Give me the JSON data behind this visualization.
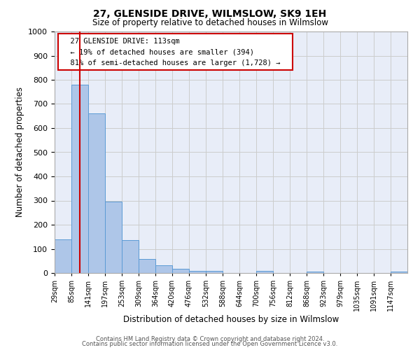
{
  "title": "27, GLENSIDE DRIVE, WILMSLOW, SK9 1EH",
  "subtitle": "Size of property relative to detached houses in Wilmslow",
  "xlabel": "Distribution of detached houses by size in Wilmslow",
  "ylabel": "Number of detached properties",
  "bin_labels": [
    "29sqm",
    "85sqm",
    "141sqm",
    "197sqm",
    "253sqm",
    "309sqm",
    "364sqm",
    "420sqm",
    "476sqm",
    "532sqm",
    "588sqm",
    "644sqm",
    "700sqm",
    "756sqm",
    "812sqm",
    "868sqm",
    "923sqm",
    "979sqm",
    "1035sqm",
    "1091sqm",
    "1147sqm"
  ],
  "bar_heights": [
    140,
    780,
    660,
    295,
    135,
    57,
    32,
    17,
    10,
    10,
    0,
    0,
    10,
    0,
    0,
    7,
    0,
    0,
    0,
    0,
    7
  ],
  "bar_color": "#aec6e8",
  "bar_edge_color": "#5b9bd5",
  "marker_color": "#cc0000",
  "ylim": [
    0,
    1000
  ],
  "yticks": [
    0,
    100,
    200,
    300,
    400,
    500,
    600,
    700,
    800,
    900,
    1000
  ],
  "annotation_title": "27 GLENSIDE DRIVE: 113sqm",
  "annotation_line1": "← 19% of detached houses are smaller (394)",
  "annotation_line2": "81% of semi-detached houses are larger (1,728) →",
  "annotation_box_color": "#ffffff",
  "annotation_box_edge": "#cc0000",
  "footer1": "Contains HM Land Registry data © Crown copyright and database right 2024.",
  "footer2": "Contains public sector information licensed under the Open Government Licence v3.0.",
  "grid_color": "#cccccc",
  "background_color": "#e8edf8"
}
